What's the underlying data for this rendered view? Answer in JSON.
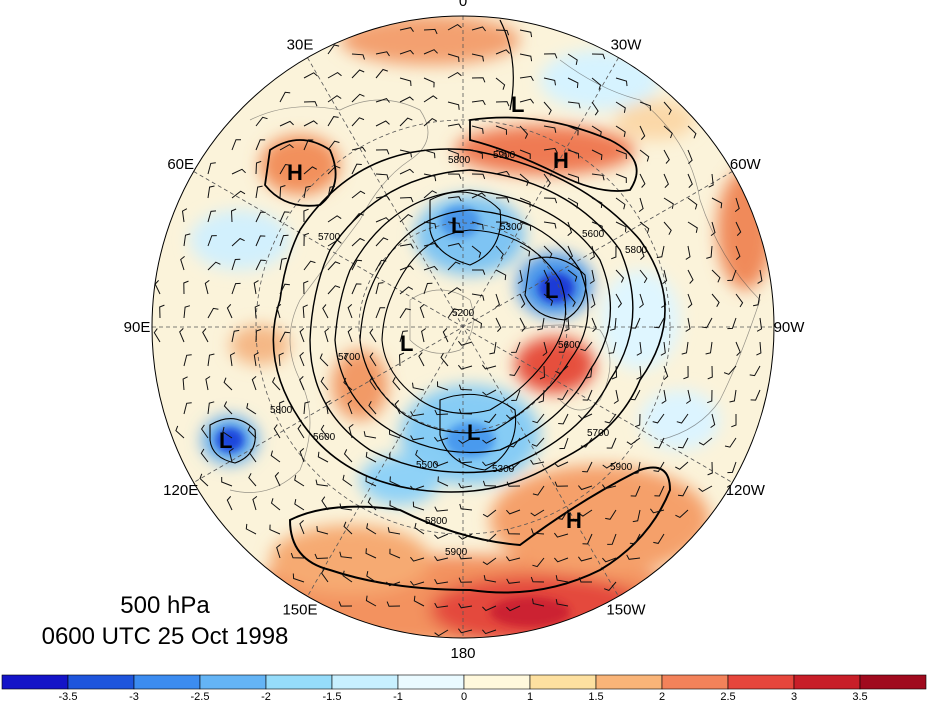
{
  "level_label": "500 hPa",
  "time_label": "0600 UTC 25 Oct 1998",
  "longitude_labels": [
    {
      "text": "0",
      "lon": 0
    },
    {
      "text": "30W",
      "lon": -30
    },
    {
      "text": "60W",
      "lon": -60
    },
    {
      "text": "90W",
      "lon": -90
    },
    {
      "text": "120W",
      "lon": -120
    },
    {
      "text": "150W",
      "lon": -150
    },
    {
      "text": "180",
      "lon": 180
    },
    {
      "text": "150E",
      "lon": 150
    },
    {
      "text": "120E",
      "lon": 120
    },
    {
      "text": "90E",
      "lon": 90
    },
    {
      "text": "60E",
      "lon": 60
    },
    {
      "text": "30E",
      "lon": 30
    }
  ],
  "pressure_centers": [
    {
      "type": "L",
      "label": "L"
    },
    {
      "type": "H",
      "label": "H"
    },
    {
      "type": "L",
      "label": "L"
    },
    {
      "type": "H",
      "label": "H"
    },
    {
      "type": "L",
      "label": "L"
    },
    {
      "type": "L",
      "label": "L"
    },
    {
      "type": "L",
      "label": "L"
    },
    {
      "type": "L",
      "label": "L"
    },
    {
      "type": "H",
      "label": "H"
    }
  ],
  "contour_labels": [
    "5800",
    "5900",
    "5300",
    "5200",
    "5700",
    "5600",
    "5700",
    "5800",
    "5800",
    "5500",
    "5300",
    "5700",
    "5900",
    "5800",
    "5900",
    "5600",
    "5600"
  ],
  "colorbar": {
    "labels": [
      "-3.5",
      "-3",
      "-2.5",
      "-2",
      "-1.5",
      "-1",
      "0",
      "1",
      "1.5",
      "2",
      "2.5",
      "3",
      "3.5"
    ],
    "colors": [
      "#1414c8",
      "#1e55dc",
      "#3c8cf0",
      "#64b4f5",
      "#96dcfa",
      "#c8f0ff",
      "#eafaff",
      "#fff8dc",
      "#fde0a0",
      "#f9b478",
      "#f3825a",
      "#e6463c",
      "#c81e28",
      "#a00a1e"
    ]
  }
}
